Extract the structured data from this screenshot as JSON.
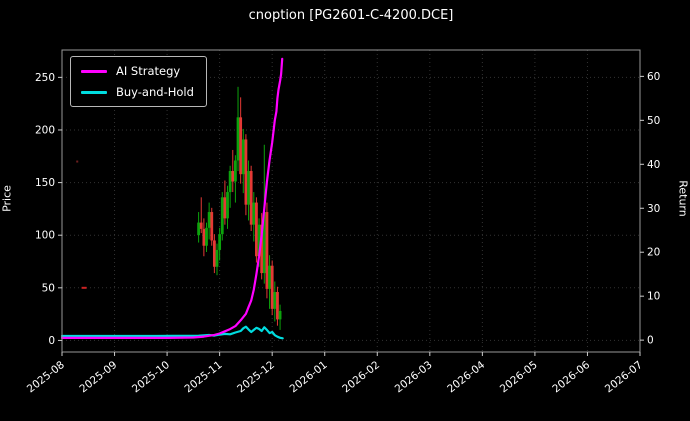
{
  "header": {
    "title": "cnoption [PG2601-C-4200.DCE]"
  },
  "legend": [
    {
      "label": "AI Strategy",
      "color": "#ff00ff"
    },
    {
      "label": "Buy-and-Hold",
      "color": "#00dde0"
    }
  ],
  "chart_data": {
    "type": "candlestick+line",
    "title": "cnoption [PG2601-C-4200.DCE]",
    "grid": true,
    "legend_position": "upper left",
    "x_unit": "months from 2025-08",
    "x_tick_labels": [
      "2025-08",
      "2025-09",
      "2025-10",
      "2025-11",
      "2025-12",
      "2026-01",
      "2026-02",
      "2026-03",
      "2026-04",
      "2026-05",
      "2026-06",
      "2026-07"
    ],
    "left_axis": {
      "label": "Price",
      "ticks": [
        0,
        50,
        100,
        150,
        200,
        250
      ],
      "range": [
        -11,
        276
      ]
    },
    "right_axis": {
      "label": "Return",
      "ticks": [
        0,
        10,
        20,
        30,
        40,
        50,
        60
      ],
      "range": [
        -2.7,
        66
      ]
    },
    "colors": {
      "background": "#000000",
      "grid": "#333333",
      "text": "#ffffff",
      "spine": "#999999",
      "tick": "#cccccc",
      "up": "#0ca30c",
      "down": "#e53935"
    },
    "candles": [
      [
        2.6,
        100,
        122,
        93,
        112
      ],
      [
        2.65,
        112,
        136,
        102,
        106
      ],
      [
        2.7,
        106,
        116,
        80,
        90
      ],
      [
        2.75,
        90,
        112,
        84,
        107
      ],
      [
        2.8,
        107,
        131,
        96,
        122
      ],
      [
        2.85,
        122,
        126,
        90,
        95
      ],
      [
        2.9,
        95,
        101,
        64,
        70
      ],
      [
        2.95,
        70,
        92,
        62,
        86
      ],
      [
        3.0,
        86,
        107,
        76,
        101
      ],
      [
        3.05,
        101,
        141,
        95,
        136
      ],
      [
        3.1,
        136,
        152,
        110,
        116
      ],
      [
        3.15,
        116,
        147,
        106,
        141
      ],
      [
        3.2,
        141,
        166,
        126,
        161
      ],
      [
        3.25,
        161,
        181,
        141,
        151
      ],
      [
        3.3,
        151,
        176,
        131,
        171
      ],
      [
        3.35,
        171,
        241,
        161,
        212
      ],
      [
        3.4,
        212,
        231,
        149,
        158
      ],
      [
        3.45,
        158,
        201,
        140,
        191
      ],
      [
        3.5,
        191,
        196,
        119,
        129
      ],
      [
        3.55,
        129,
        171,
        114,
        161
      ],
      [
        3.6,
        161,
        166,
        104,
        110
      ],
      [
        3.65,
        110,
        141,
        94,
        131
      ],
      [
        3.7,
        131,
        136,
        74,
        80
      ],
      [
        3.75,
        80,
        116,
        70,
        110
      ],
      [
        3.8,
        110,
        121,
        58,
        64
      ],
      [
        3.85,
        64,
        186,
        54,
        122
      ],
      [
        3.9,
        122,
        131,
        40,
        49
      ],
      [
        3.95,
        49,
        81,
        30,
        71
      ],
      [
        4.0,
        71,
        76,
        24,
        30
      ],
      [
        4.05,
        30,
        56,
        18,
        46
      ],
      [
        4.1,
        46,
        51,
        14,
        20
      ],
      [
        4.15,
        20,
        34,
        10,
        28
      ]
    ],
    "isolated_marks": [
      {
        "t": 0.42,
        "price": 50,
        "color": "#cc2222",
        "w": 5,
        "h": 2
      },
      {
        "t": 0.29,
        "price": 170,
        "color": "#6e1f1f",
        "w": 2,
        "h": 2
      }
    ],
    "series": [
      {
        "name": "Buy-and-Hold",
        "axis": "left",
        "color": "#00dde0",
        "points": [
          [
            0,
            4.2
          ],
          [
            0.3,
            4.2
          ],
          [
            0.6,
            4.2
          ],
          [
            0.9,
            4.2
          ],
          [
            1.2,
            4.2
          ],
          [
            1.5,
            4.2
          ],
          [
            1.8,
            4.2
          ],
          [
            2.1,
            4.3
          ],
          [
            2.4,
            4.3
          ],
          [
            2.6,
            4.5
          ],
          [
            2.7,
            4.8
          ],
          [
            2.8,
            5.2
          ],
          [
            2.9,
            4.6
          ],
          [
            3.0,
            5.5
          ],
          [
            3.1,
            6.2
          ],
          [
            3.2,
            5.8
          ],
          [
            3.3,
            7.5
          ],
          [
            3.4,
            9.0
          ],
          [
            3.45,
            11.5
          ],
          [
            3.5,
            13.0
          ],
          [
            3.55,
            10.5
          ],
          [
            3.6,
            8.0
          ],
          [
            3.65,
            10.0
          ],
          [
            3.7,
            12.0
          ],
          [
            3.75,
            11.0
          ],
          [
            3.8,
            9.0
          ],
          [
            3.85,
            12.5
          ],
          [
            3.9,
            10.0
          ],
          [
            3.95,
            7.0
          ],
          [
            4.0,
            8.0
          ],
          [
            4.05,
            5.0
          ],
          [
            4.1,
            3.5
          ],
          [
            4.15,
            2.5
          ],
          [
            4.2,
            2.0
          ]
        ]
      },
      {
        "name": "AI Strategy",
        "axis": "right",
        "color": "#ff00ff",
        "points": [
          [
            0,
            0.5
          ],
          [
            0.5,
            0.5
          ],
          [
            1,
            0.5
          ],
          [
            1.5,
            0.5
          ],
          [
            2,
            0.5
          ],
          [
            2.5,
            0.6
          ],
          [
            2.7,
            0.8
          ],
          [
            2.9,
            1.2
          ],
          [
            3.0,
            1.5
          ],
          [
            3.1,
            2.0
          ],
          [
            3.2,
            2.5
          ],
          [
            3.3,
            3.2
          ],
          [
            3.4,
            4.5
          ],
          [
            3.5,
            6.0
          ],
          [
            3.55,
            7.5
          ],
          [
            3.6,
            9.0
          ],
          [
            3.65,
            11.5
          ],
          [
            3.7,
            15.0
          ],
          [
            3.75,
            19.0
          ],
          [
            3.8,
            24.0
          ],
          [
            3.85,
            30.0
          ],
          [
            3.9,
            36.0
          ],
          [
            3.95,
            41.0
          ],
          [
            4.0,
            45.0
          ],
          [
            4.05,
            50.0
          ],
          [
            4.08,
            52.0
          ],
          [
            4.1,
            55.0
          ],
          [
            4.12,
            57.0
          ],
          [
            4.15,
            59.0
          ],
          [
            4.17,
            60.5
          ],
          [
            4.19,
            64.0
          ]
        ]
      }
    ]
  }
}
